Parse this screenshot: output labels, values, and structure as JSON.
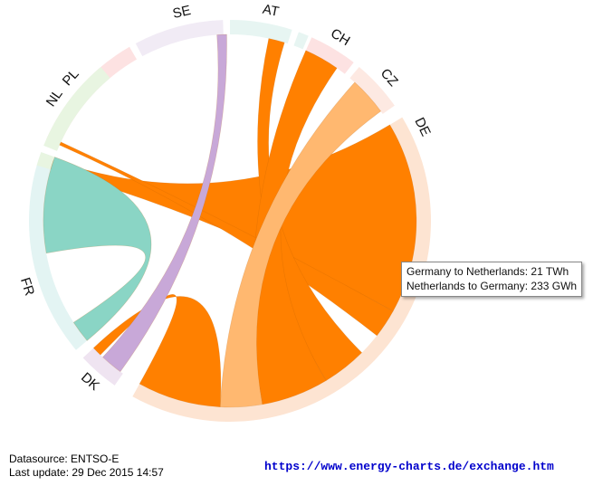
{
  "chart_data": {
    "type": "chord",
    "segments": [
      {
        "label": "DE",
        "color": "#fde4d2"
      },
      {
        "label": "DK",
        "color": "#efe4f1"
      },
      {
        "label": "FR",
        "color": "#e3f4f3"
      },
      {
        "label": "NL",
        "color": "#e8f5e1"
      },
      {
        "label": "PL",
        "color": "#fde2e2"
      },
      {
        "label": "SE",
        "color": "#f1ebf5"
      },
      {
        "label": "AT",
        "color": "#e7f5f2"
      },
      {
        "label": "CH",
        "color": "#fde2e2"
      },
      {
        "label": "CZ",
        "color": "#fde9e2"
      }
    ],
    "flows": [
      {
        "source": "DE",
        "target": "NL",
        "color": "#ff8000"
      },
      {
        "source": "DE",
        "target": "PL",
        "color": "#ff8000"
      },
      {
        "source": "DE",
        "target": "AT",
        "color": "#ff8000"
      },
      {
        "source": "DE",
        "target": "CH",
        "color": "#ff8000"
      },
      {
        "source": "DE",
        "target": "CZ",
        "color": "#ffb870"
      },
      {
        "source": "DE",
        "target": "DK",
        "color": "#ff8000"
      },
      {
        "source": "FR",
        "target": "FR",
        "color": "#8ad5c5"
      },
      {
        "source": "DK",
        "target": "SE",
        "color": "#c8a8d8"
      }
    ]
  },
  "tooltip": {
    "line1": "Germany to Netherlands: 21 TWh",
    "line2": "Netherlands to Germany: 233 GWh"
  },
  "footer": {
    "datasource": "Datasource: ENTSO-E",
    "last_update": "Last update: 29 Dec 2015 14:57",
    "url": "https://www.energy-charts.de/exchange.htm"
  }
}
